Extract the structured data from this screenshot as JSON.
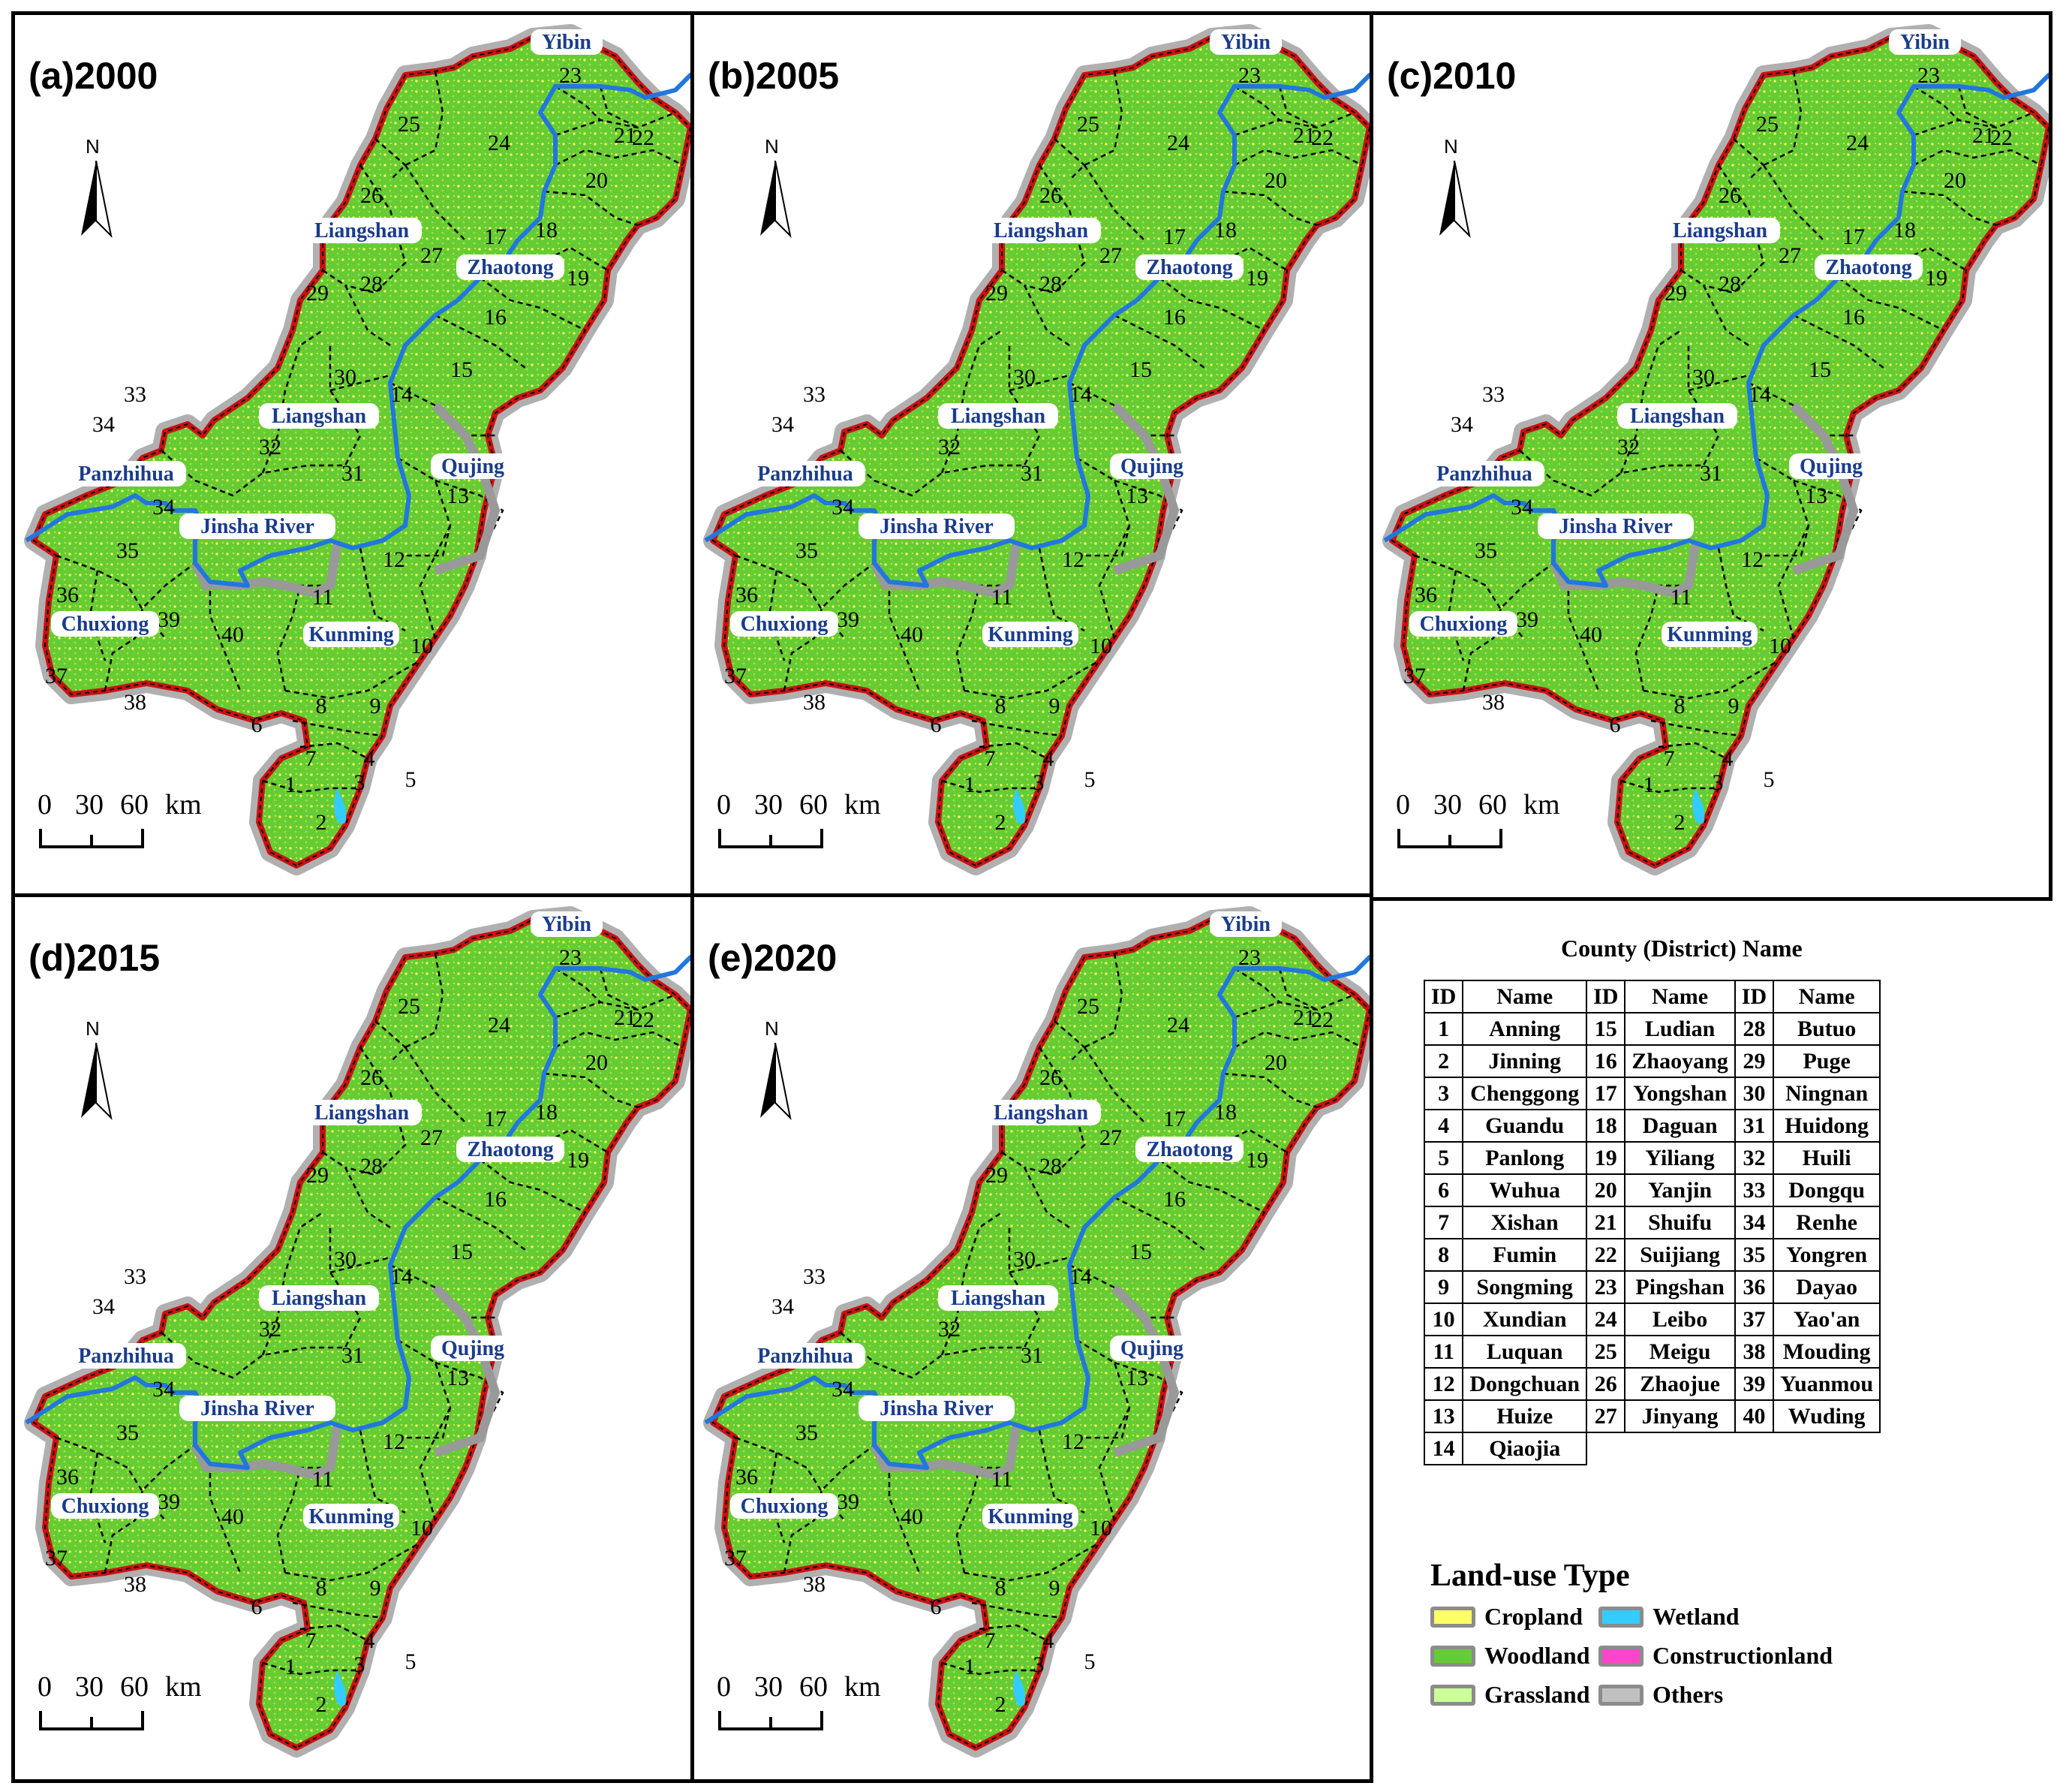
{
  "panels": [
    {
      "title": "(a)2000"
    },
    {
      "title": "(b)2005"
    },
    {
      "title": "(c)2010"
    },
    {
      "title": "(d)2015"
    },
    {
      "title": "(e)2020"
    }
  ],
  "map_labels": {
    "north": "N",
    "scale": [
      "0",
      "30",
      "60",
      "km"
    ],
    "regions": [
      "Yibin",
      "Liangshan",
      "Zhaotong",
      "Liangshan",
      "Panzhihua",
      "Qujing",
      "Jinsha River",
      "Chuxiong",
      "Kunming"
    ],
    "ids": [
      "1",
      "2",
      "3",
      "4",
      "5",
      "6",
      "7",
      "8",
      "9",
      "10",
      "11",
      "12",
      "13",
      "14",
      "15",
      "16",
      "17",
      "18",
      "19",
      "20",
      "21",
      "22",
      "23",
      "24",
      "25",
      "26",
      "27",
      "28",
      "29",
      "30",
      "31",
      "32",
      "33",
      "34",
      "34",
      "35",
      "36",
      "37",
      "38",
      "39",
      "40"
    ]
  },
  "county_table": {
    "title": "County (District) Name",
    "headers": [
      "ID",
      "Name",
      "ID",
      "Name",
      "ID",
      "Name"
    ],
    "rows": [
      [
        "1",
        "Anning",
        "15",
        "Ludian",
        "28",
        "Butuo"
      ],
      [
        "2",
        "Jinning",
        "16",
        "Zhaoyang",
        "29",
        "Puge"
      ],
      [
        "3",
        "Chenggong",
        "17",
        "Yongshan",
        "30",
        "Ningnan"
      ],
      [
        "4",
        "Guandu",
        "18",
        "Daguan",
        "31",
        "Huidong"
      ],
      [
        "5",
        "Panlong",
        "19",
        "Yiliang",
        "32",
        "Huili"
      ],
      [
        "6",
        "Wuhua",
        "20",
        "Yanjin",
        "33",
        "Dongqu"
      ],
      [
        "7",
        "Xishan",
        "21",
        "Shuifu",
        "34",
        "Renhe"
      ],
      [
        "8",
        "Fumin",
        "22",
        "Suijiang",
        "35",
        "Yongren"
      ],
      [
        "9",
        "Songming",
        "23",
        "Pingshan",
        "36",
        "Dayao"
      ],
      [
        "10",
        "Xundian",
        "24",
        "Leibo",
        "37",
        "Yao'an"
      ],
      [
        "11",
        "Luquan",
        "25",
        "Meigu",
        "38",
        "Mouding"
      ],
      [
        "12",
        "Dongchuan",
        "26",
        "Zhaojue",
        "39",
        "Yuanmou"
      ],
      [
        "13",
        "Huize",
        "27",
        "Jinyang",
        "40",
        "Wuding"
      ],
      [
        "14",
        "Qiaojia",
        "",
        "",
        " ",
        ""
      ]
    ]
  },
  "land_use": {
    "title": "Land-use Type",
    "items": [
      {
        "label": "Cropland",
        "color": "#ffff66"
      },
      {
        "label": "Wetland",
        "color": "#33ccff"
      },
      {
        "label": "Woodland",
        "color": "#66cc33"
      },
      {
        "label": "Constructionland",
        "color": "#ff44cc"
      },
      {
        "label": "Grassland",
        "color": "#ccff99"
      },
      {
        "label": "Others",
        "color": "#c0c0c0"
      }
    ]
  },
  "colors": {
    "boundary_red": "#cc1111",
    "boundary_halo": "#b0b0b0",
    "river": "#2277dd",
    "woodland": "#66cc33",
    "cropland": "#ffff66",
    "region_label": "#1a3c8c"
  }
}
